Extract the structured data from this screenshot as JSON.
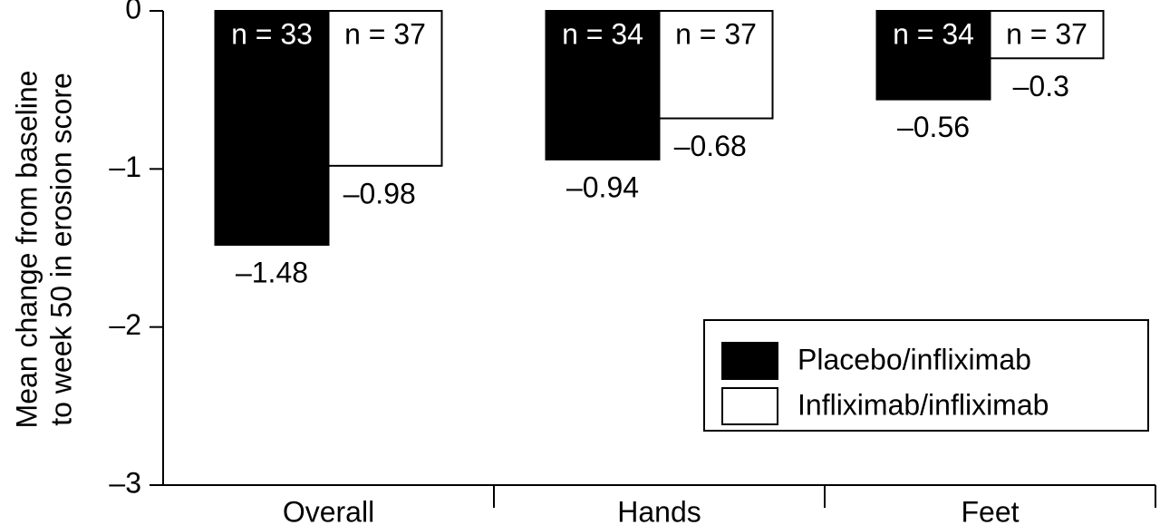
{
  "chart_data": {
    "type": "bar",
    "y_label": [
      "Mean change from baseline",
      "to week 50 in erosion score"
    ],
    "categories": [
      "Overall",
      "Hands",
      "Feet"
    ],
    "series": [
      {
        "name": "Placebo/infliximab",
        "color": "#000000",
        "values": [
          -1.48,
          -0.94,
          -0.56
        ],
        "value_labels": [
          "–1.48",
          "–0.94",
          "–0.56"
        ],
        "sample_labels": [
          "n = 33",
          "n = 34",
          "n = 34"
        ]
      },
      {
        "name": "Infliximab/infliximab",
        "color": "#ffffff",
        "values": [
          -0.98,
          -0.68,
          -0.3
        ],
        "value_labels": [
          "–0.98",
          "–0.68",
          "–0.3"
        ],
        "sample_labels": [
          "n = 37",
          "n = 37",
          "n = 37"
        ]
      }
    ],
    "ylim": [
      -3,
      0
    ],
    "yticks": [
      {
        "value": -3,
        "label": "–3"
      },
      {
        "value": -2,
        "label": "–2"
      },
      {
        "value": -1,
        "label": "–1"
      },
      0
    ],
    "legend": "lower right"
  }
}
